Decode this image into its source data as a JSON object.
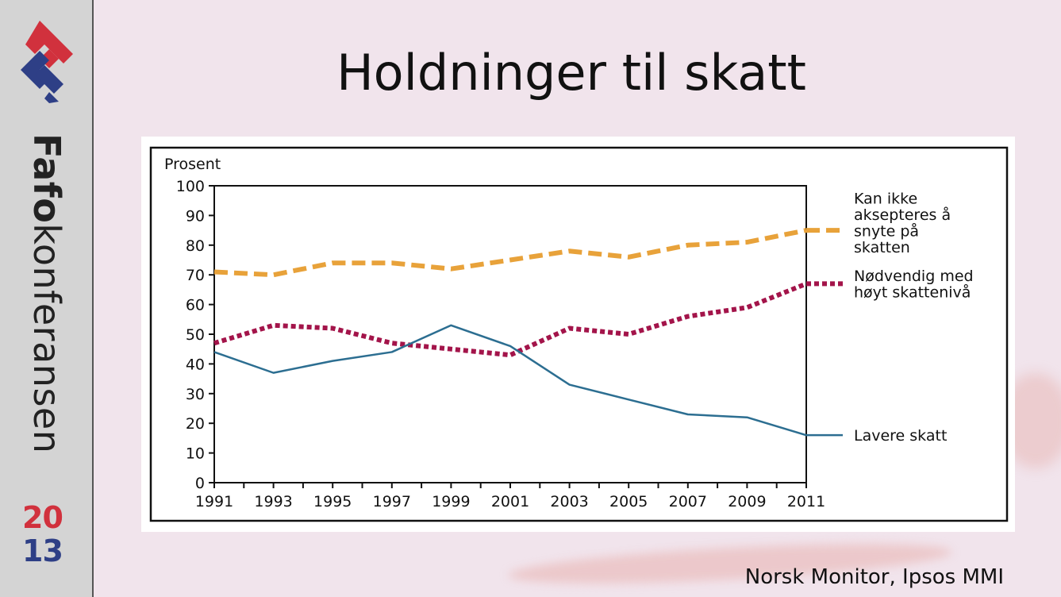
{
  "sidebar": {
    "logo_icon": "fafo-logo-icon",
    "wordmark_bold": "Fafo",
    "wordmark_light": "konferansen",
    "year_top": "20",
    "year_bottom": "13"
  },
  "slide": {
    "title": "Holdninger til skatt",
    "source": "Norsk Monitor, Ipsos MMI"
  },
  "chart_data": {
    "type": "line",
    "ylabel": "Prosent",
    "xlabel": "",
    "ylim": [
      0,
      100
    ],
    "yticks": [
      0,
      10,
      20,
      30,
      40,
      50,
      60,
      70,
      80,
      90,
      100
    ],
    "x": [
      1991,
      1993,
      1995,
      1997,
      1999,
      2001,
      2003,
      2005,
      2007,
      2009,
      2011
    ],
    "grid": false,
    "legend_placement": "right",
    "series": [
      {
        "name": "Kan ikke aksepteres å snyte på skatten",
        "legend_lines": [
          "Kan ikke",
          "aksepteres å",
          "snyte på",
          "skatten"
        ],
        "color": "#e8a23a",
        "style": "dashed",
        "values": [
          71,
          70,
          74,
          74,
          72,
          75,
          78,
          76,
          80,
          81,
          85
        ]
      },
      {
        "name": "Nødvendig med høyt skattenivå",
        "legend_lines": [
          "Nødvendig med",
          "høyt skattenivå"
        ],
        "color": "#a3144a",
        "style": "dotted",
        "values": [
          47,
          53,
          52,
          47,
          45,
          43,
          52,
          50,
          56,
          59,
          67
        ]
      },
      {
        "name": "Lavere skatt",
        "legend_lines": [
          "Lavere skatt"
        ],
        "color": "#2c6e91",
        "style": "solid",
        "values": [
          44,
          37,
          41,
          44,
          53,
          46,
          33,
          28,
          23,
          22,
          16
        ]
      }
    ]
  }
}
